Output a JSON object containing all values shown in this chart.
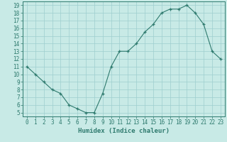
{
  "x": [
    0,
    1,
    2,
    3,
    4,
    5,
    6,
    7,
    8,
    9,
    10,
    11,
    12,
    13,
    14,
    15,
    16,
    17,
    18,
    19,
    20,
    21,
    22,
    23
  ],
  "y": [
    11,
    10,
    9,
    8,
    7.5,
    6,
    5.5,
    5,
    5,
    7.5,
    11,
    13,
    13,
    14,
    15.5,
    16.5,
    18,
    18.5,
    18.5,
    19,
    18,
    16.5,
    13,
    12
  ],
  "line_color": "#2e7a6e",
  "marker": "+",
  "bg_color": "#c8eae6",
  "grid_color": "#9ecece",
  "xlabel": "Humidex (Indice chaleur)",
  "xlim": [
    -0.5,
    23.5
  ],
  "ylim": [
    4.5,
    19.5
  ],
  "yticks": [
    5,
    6,
    7,
    8,
    9,
    10,
    11,
    12,
    13,
    14,
    15,
    16,
    17,
    18,
    19
  ],
  "xticks": [
    0,
    1,
    2,
    3,
    4,
    5,
    6,
    7,
    8,
    9,
    10,
    11,
    12,
    13,
    14,
    15,
    16,
    17,
    18,
    19,
    20,
    21,
    22,
    23
  ],
  "tick_color": "#2e7a6e",
  "label_fontsize": 6.5,
  "tick_fontsize": 5.5
}
